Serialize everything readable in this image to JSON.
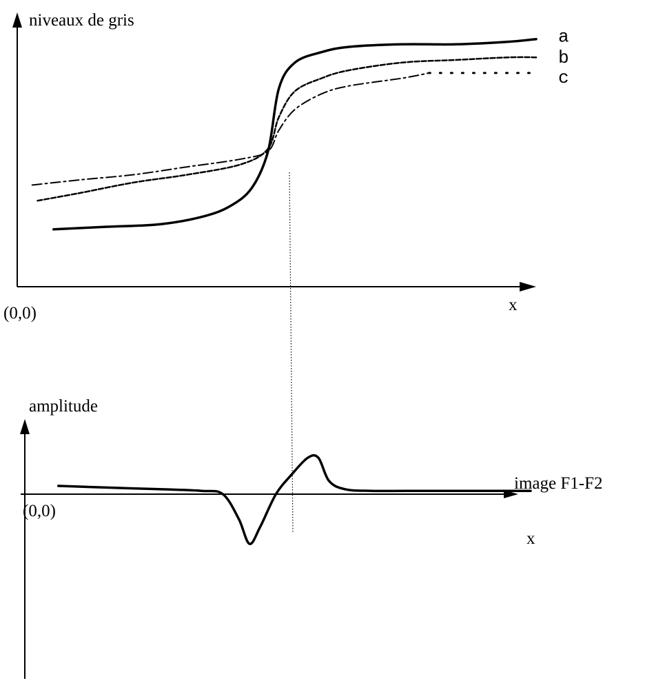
{
  "chart_data": [
    {
      "type": "line",
      "ylabel": "niveaux de gris",
      "xlabel": "x",
      "origin_label": "(0,0)",
      "series": [
        {
          "name": "a",
          "style": "solid",
          "x": [
            0.1,
            0.2,
            0.3,
            0.38,
            0.43,
            0.47,
            0.5,
            0.52,
            0.55,
            0.6,
            0.65,
            0.75,
            0.85,
            0.95,
            1.0
          ],
          "y": [
            0.22,
            0.23,
            0.24,
            0.27,
            0.31,
            0.38,
            0.52,
            0.76,
            0.86,
            0.9,
            0.92,
            0.93,
            0.93,
            0.94,
            0.95
          ]
        },
        {
          "name": "b",
          "style": "dashed",
          "x": [
            0.07,
            0.15,
            0.25,
            0.35,
            0.45,
            0.5,
            0.52,
            0.55,
            0.6,
            0.65,
            0.75,
            0.85,
            0.95,
            1.0
          ],
          "y": [
            0.33,
            0.36,
            0.4,
            0.43,
            0.47,
            0.53,
            0.65,
            0.75,
            0.8,
            0.83,
            0.86,
            0.87,
            0.88,
            0.88
          ]
        },
        {
          "name": "c",
          "style": "dash-dot",
          "x": [
            0.06,
            0.15,
            0.25,
            0.35,
            0.45,
            0.5,
            0.52,
            0.55,
            0.6,
            0.65,
            0.75,
            0.8
          ],
          "y": [
            0.39,
            0.41,
            0.43,
            0.46,
            0.49,
            0.52,
            0.6,
            0.68,
            0.74,
            0.77,
            0.8,
            0.82
          ]
        },
        {
          "name": "c",
          "style": "dotted",
          "x": [
            0.8,
            0.9,
            1.0
          ],
          "y": [
            0.82,
            0.82,
            0.82
          ]
        }
      ]
    },
    {
      "type": "line",
      "ylabel": "amplitude",
      "xlabel": "x",
      "origin_label": "(0,0)",
      "series": [
        {
          "name": "image F1-F2",
          "style": "solid",
          "x": [
            0.11,
            0.2,
            0.3,
            0.38,
            0.42,
            0.45,
            0.47,
            0.49,
            0.52,
            0.55,
            0.58,
            0.6,
            0.62,
            0.65,
            0.7,
            0.8,
            0.9,
            1.0
          ],
          "y": [
            0.05,
            0.04,
            0.03,
            0.02,
            0.0,
            -0.15,
            -0.3,
            -0.2,
            0.0,
            0.12,
            0.22,
            0.22,
            0.08,
            0.03,
            0.02,
            0.02,
            0.02,
            0.02
          ]
        }
      ]
    }
  ]
}
